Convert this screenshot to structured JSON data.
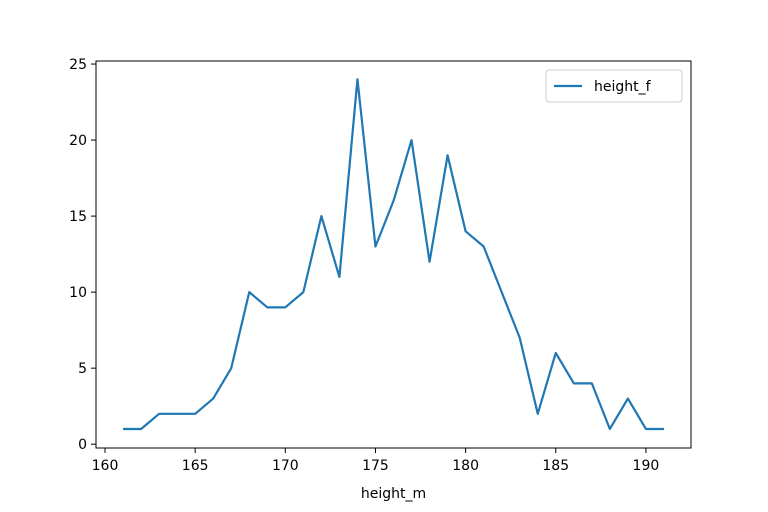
{
  "chart_data": {
    "type": "line",
    "title": "",
    "xlabel": "height_m",
    "ylabel": "",
    "xlim": [
      159.5,
      192.5
    ],
    "ylim": [
      -0.25,
      25.2
    ],
    "xticks": [
      160,
      165,
      170,
      175,
      180,
      185,
      190
    ],
    "yticks": [
      0,
      5,
      10,
      15,
      20,
      25
    ],
    "grid": false,
    "legend_position": "top-right",
    "series_color": "#1f77b4",
    "series": [
      {
        "name": "height_f",
        "x": [
          161,
          162,
          163,
          164,
          165,
          166,
          167,
          168,
          169,
          170,
          171,
          172,
          173,
          174,
          175,
          176,
          177,
          178,
          179,
          180,
          181,
          182,
          183,
          184,
          185,
          186,
          187,
          188,
          189,
          190,
          191
        ],
        "values": [
          1,
          1,
          2,
          2,
          2,
          3,
          5,
          10,
          9,
          9,
          10,
          15,
          11,
          24,
          13,
          16,
          20,
          12,
          19,
          14,
          13,
          10,
          7,
          2,
          6,
          4,
          4,
          1,
          3,
          1,
          1
        ]
      }
    ]
  }
}
